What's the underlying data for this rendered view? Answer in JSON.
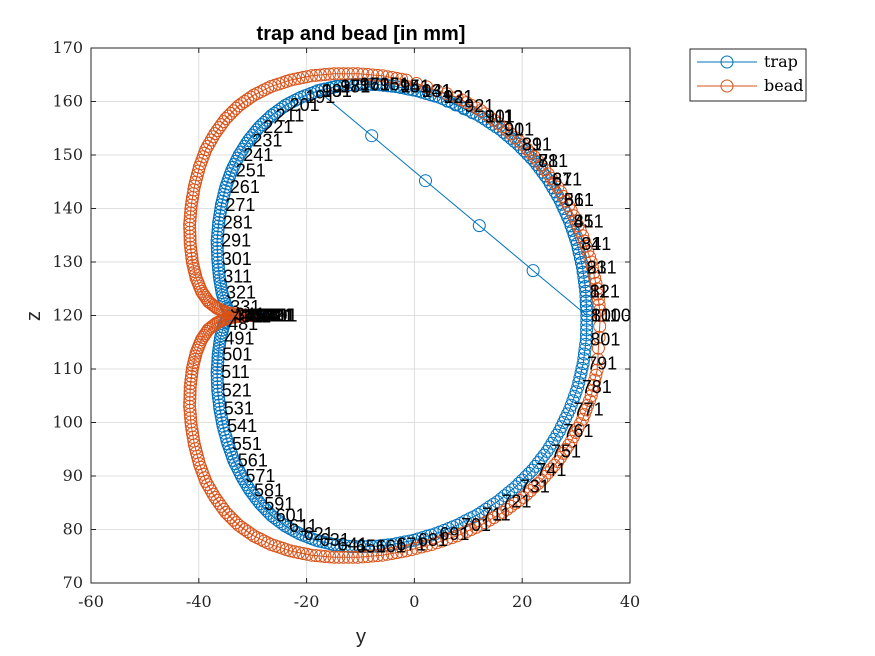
{
  "chart_data": {
    "type": "scatter",
    "title": "trap and bead [in mm]",
    "xlabel": "y",
    "ylabel": "z",
    "xlim": [
      -60,
      40
    ],
    "ylim": [
      70,
      170
    ],
    "xticks": [
      "-60",
      "-40",
      "-20",
      "0",
      "20",
      "40"
    ],
    "yticks": [
      "70",
      "80",
      "90",
      "100",
      "110",
      "120",
      "130",
      "140",
      "150",
      "160",
      "170"
    ],
    "grid": true,
    "legend_position": "top-right outside",
    "marker": "open circle",
    "series": [
      {
        "name": "trap",
        "color": "#0072BD",
        "curve": "cardioid-like closed loop centered near (-6,120)",
        "t": [
          1,
          11,
          21,
          31,
          41,
          51,
          61,
          71,
          81,
          91,
          101,
          121,
          131,
          141,
          151,
          161,
          171,
          181,
          191,
          201,
          211,
          221,
          231,
          241,
          251,
          261,
          271,
          281,
          291,
          301,
          311,
          321,
          331,
          341,
          351,
          361,
          371,
          381,
          391,
          401,
          411,
          421,
          431,
          441,
          451,
          461,
          471,
          481,
          491,
          501,
          511,
          521,
          531,
          541,
          551,
          561,
          571,
          581,
          591,
          601,
          611,
          621,
          631,
          641,
          651,
          661,
          671,
          681,
          691,
          701,
          711,
          721,
          731,
          741,
          751,
          761,
          771,
          781,
          791,
          801,
          811,
          821,
          831,
          841,
          851,
          861,
          871,
          881,
          891,
          901,
          911,
          921,
          931,
          941,
          951,
          961,
          971,
          981,
          991,
          1000
        ],
        "y": [
          32.0,
          31.8,
          31.2,
          30.2,
          28.8,
          27.0,
          24.8,
          22.2,
          19.2,
          15.9,
          12.3,
          4.6,
          0.6,
          -3.4,
          -7.2,
          -10.9,
          -14.5,
          -17.9,
          -21.0,
          -23.9,
          -26.5,
          -28.8,
          -30.8,
          -32.5,
          -33.9,
          -35.0,
          -35.8,
          -36.3,
          -36.6,
          -36.5,
          -36.2,
          -35.7,
          -34.9,
          -34.0,
          -32.9,
          -31.8,
          -30.6,
          -29.5,
          -28.5,
          -28.0,
          -28.1,
          -28.8,
          -29.9,
          -31.0,
          -32.2,
          -33.3,
          -34.4,
          -35.3,
          -36.0,
          -36.4,
          -36.6,
          -36.5,
          -36.1,
          -35.5,
          -34.6,
          -33.5,
          -32.1,
          -30.5,
          -28.6,
          -26.5,
          -24.0,
          -21.3,
          -18.3,
          -15.0,
          -11.6,
          -7.9,
          -4.1,
          -0.1,
          3.9,
          7.9,
          11.8,
          15.4,
          18.8,
          21.9,
          24.6,
          26.9,
          28.8,
          30.3,
          31.3,
          31.9,
          32.0,
          31.8,
          31.2,
          30.2,
          28.8,
          27.0,
          24.8,
          22.2,
          19.2,
          15.9,
          12.3,
          8.5,
          4.6,
          0.6,
          -3.4,
          -7.2,
          -10.9,
          -14.5,
          -17.9,
          32.0
        ],
        "z": [
          120.0,
          124.5,
          129.0,
          133.4,
          137.6,
          141.6,
          145.4,
          148.9,
          152.0,
          154.8,
          157.2,
          160.8,
          162.0,
          162.8,
          163.2,
          163.2,
          162.8,
          162.0,
          160.8,
          159.3,
          157.4,
          155.2,
          152.7,
          150.0,
          147.1,
          144.0,
          140.7,
          137.4,
          134.0,
          130.6,
          127.3,
          124.3,
          121.6,
          120.2,
          119.8,
          120.0,
          120.0,
          120.0,
          120.0,
          120.0,
          120.0,
          120.0,
          120.0,
          120.0,
          120.0,
          120.0,
          119.8,
          118.4,
          115.7,
          112.7,
          109.4,
          106.0,
          102.6,
          99.3,
          96.0,
          92.9,
          90.0,
          87.3,
          84.8,
          82.6,
          80.7,
          79.2,
          78.0,
          77.2,
          76.8,
          76.8,
          77.2,
          78.0,
          79.2,
          80.8,
          82.8,
          85.2,
          88.0,
          91.1,
          94.6,
          98.4,
          102.4,
          106.6,
          111.0,
          115.5,
          120.0,
          124.5,
          129.0,
          133.4,
          137.6,
          141.6,
          145.4,
          148.9,
          152.0,
          154.8,
          157.2,
          159.2,
          160.8,
          162.0,
          162.8,
          163.2,
          163.2,
          162.8,
          162.0,
          120.0
        ]
      },
      {
        "name": "bead",
        "color": "#D95319",
        "curve": "slightly larger loop just outside trap",
        "y": [
          34.5,
          33.9,
          32.8,
          31.2,
          29.1,
          26.6,
          23.6,
          20.2,
          16.4,
          12.3,
          7.9,
          -1.5,
          -5.9,
          -10.5,
          -14.9,
          -19.1,
          -23.0,
          -26.6,
          -29.8,
          -32.6,
          -35.0,
          -37.0,
          -38.7,
          -39.9,
          -40.8,
          -41.4,
          -41.7,
          -41.6,
          -41.2,
          -40.5,
          -39.5,
          -38.2,
          -36.7,
          -35.0,
          -33.0,
          -31.0,
          -30.0,
          -31.0,
          -33.0,
          -35.0,
          -36.7,
          -38.2,
          -39.5,
          -40.5,
          -41.2,
          -41.6,
          -41.7,
          -41.4,
          -40.8,
          -39.9,
          -38.7,
          -37.0,
          -35.0,
          -32.6,
          -29.8,
          -26.6,
          -23.0,
          -19.1,
          -14.9,
          -10.5,
          -5.9,
          -1.5,
          3.2,
          7.9,
          12.3,
          16.4,
          20.2,
          23.6,
          26.6,
          29.1,
          31.2,
          32.8,
          33.9,
          34.5
        ],
        "z": [
          120.0,
          125.0,
          130.0,
          134.9,
          139.6,
          144.0,
          148.1,
          151.9,
          155.3,
          158.3,
          160.8,
          164.0,
          164.8,
          165.2,
          165.2,
          164.8,
          164.0,
          162.8,
          161.2,
          159.2,
          156.8,
          154.0,
          151.0,
          147.7,
          144.2,
          140.6,
          137.0,
          133.4,
          130.0,
          127.0,
          124.5,
          122.6,
          121.4,
          120.6,
          120.2,
          120.0,
          120.0,
          120.0,
          119.8,
          119.4,
          118.6,
          117.4,
          115.5,
          113.0,
          110.0,
          106.6,
          103.0,
          99.4,
          95.8,
          92.3,
          89.0,
          86.0,
          83.2,
          80.8,
          78.8,
          77.2,
          76.0,
          75.2,
          74.8,
          74.8,
          75.2,
          76.0,
          77.2,
          78.8,
          80.8,
          83.2,
          86.0,
          89.2,
          92.7,
          96.5,
          100.6,
          105.0,
          109.8,
          120.0
        ]
      }
    ]
  }
}
